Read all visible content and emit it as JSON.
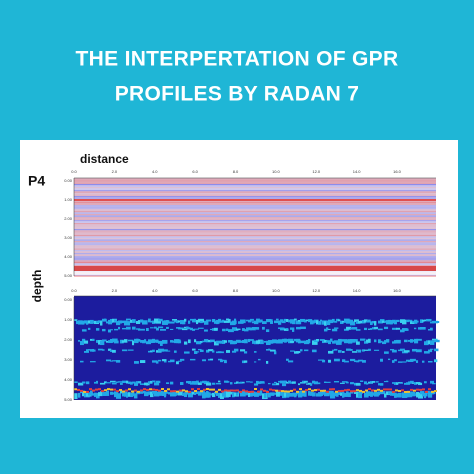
{
  "header": {
    "title_lines": [
      "THE INTERPERTATION OF GPR",
      "PROFILES BY RADAN 7"
    ]
  },
  "figure": {
    "profile": "P4",
    "x_label": "distance",
    "y_label": "depth",
    "distance_ticks": [
      "0.0",
      "2.0",
      "4.0",
      "6.0",
      "8.0",
      "10.0",
      "12.0",
      "14.0",
      "16.0"
    ],
    "depth_ticks": [
      "0.00",
      "1.00",
      "2.00",
      "3.00",
      "4.00",
      "5.00"
    ]
  }
}
